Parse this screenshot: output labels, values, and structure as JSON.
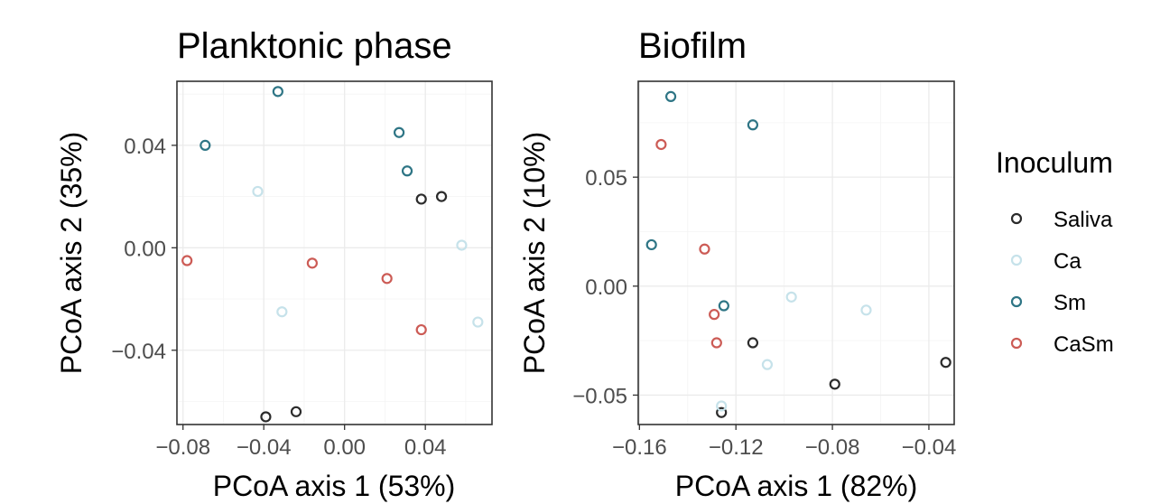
{
  "chart_data": [
    {
      "type": "scatter",
      "title": "Planktonic phase",
      "xlabel": "PCoA axis 1 (53%)",
      "ylabel": "PCoA axis 2 (35%)",
      "xlim": [
        -0.083,
        0.073
      ],
      "ylim": [
        -0.069,
        0.065
      ],
      "xticks": [
        -0.08,
        -0.04,
        0.0,
        0.04
      ],
      "xtick_labels": [
        "−0.08",
        "−0.04",
        "0.00",
        "0.04"
      ],
      "yticks": [
        -0.04,
        0.0,
        0.04
      ],
      "ytick_labels": [
        "−0.04",
        "0.00",
        "0.04"
      ],
      "series": [
        {
          "name": "Saliva",
          "points": [
            [
              0.038,
              0.019
            ],
            [
              0.048,
              0.02
            ],
            [
              -0.039,
              -0.066
            ],
            [
              -0.024,
              -0.064
            ]
          ]
        },
        {
          "name": "Ca",
          "points": [
            [
              -0.043,
              0.022
            ],
            [
              0.058,
              0.001
            ],
            [
              -0.031,
              -0.025
            ],
            [
              0.066,
              -0.029
            ]
          ]
        },
        {
          "name": "Sm",
          "points": [
            [
              -0.069,
              0.04
            ],
            [
              -0.033,
              0.061
            ],
            [
              0.027,
              0.045
            ],
            [
              0.031,
              0.03
            ]
          ]
        },
        {
          "name": "CaSm",
          "points": [
            [
              -0.078,
              -0.005
            ],
            [
              -0.016,
              -0.006
            ],
            [
              0.021,
              -0.012
            ],
            [
              0.038,
              -0.032
            ]
          ]
        }
      ]
    },
    {
      "type": "scatter",
      "title": "Biofilm",
      "xlabel": "PCoA axis 1 (82%)",
      "ylabel": "PCoA axis 2 (10%)",
      "xlim": [
        -0.1605,
        -0.0295
      ],
      "ylim": [
        -0.0635,
        0.094
      ],
      "xticks": [
        -0.16,
        -0.12,
        -0.08,
        -0.04
      ],
      "xtick_labels": [
        "−0.16",
        "−0.12",
        "−0.08",
        "−0.04"
      ],
      "yticks": [
        -0.05,
        0.0,
        0.05
      ],
      "ytick_labels": [
        "−0.05",
        "0.00",
        "0.05"
      ],
      "series": [
        {
          "name": "Saliva",
          "points": [
            [
              -0.113,
              -0.026
            ],
            [
              -0.079,
              -0.045
            ],
            [
              -0.126,
              -0.058
            ],
            [
              -0.033,
              -0.035
            ]
          ]
        },
        {
          "name": "Ca",
          "points": [
            [
              -0.097,
              -0.005
            ],
            [
              -0.066,
              -0.011
            ],
            [
              -0.107,
              -0.036
            ],
            [
              -0.126,
              -0.055
            ]
          ]
        },
        {
          "name": "Sm",
          "points": [
            [
              -0.147,
              0.087
            ],
            [
              -0.113,
              0.074
            ],
            [
              -0.155,
              0.019
            ],
            [
              -0.125,
              -0.009
            ]
          ]
        },
        {
          "name": "CaSm",
          "points": [
            [
              -0.151,
              0.065
            ],
            [
              -0.133,
              0.017
            ],
            [
              -0.129,
              -0.013
            ],
            [
              -0.128,
              -0.026
            ]
          ]
        }
      ]
    }
  ],
  "legend": {
    "title": "Inoculum",
    "items": [
      {
        "label": "Saliva",
        "color": "#2b2b2b"
      },
      {
        "label": "Ca",
        "color": "#c6e2ea"
      },
      {
        "label": "Sm",
        "color": "#2e7585"
      },
      {
        "label": "CaSm",
        "color": "#cc5b55"
      }
    ]
  }
}
